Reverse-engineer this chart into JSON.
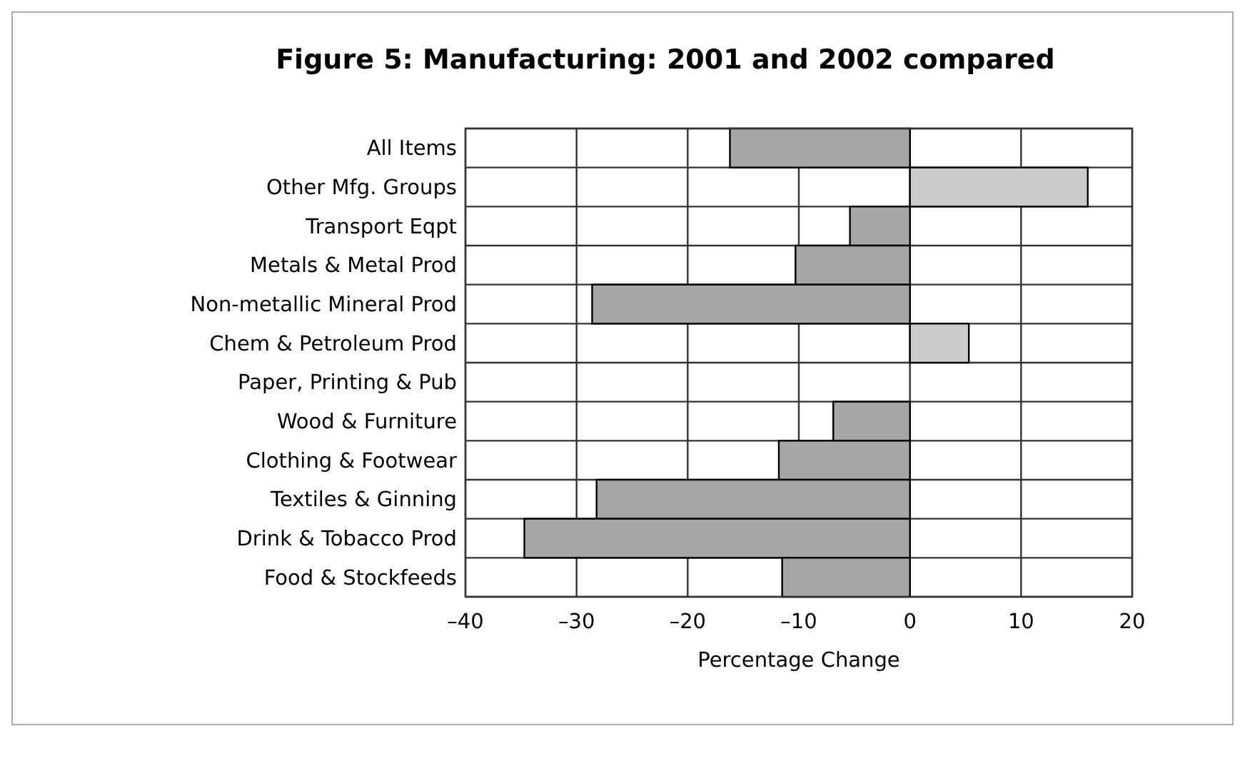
{
  "chart_data": {
    "type": "bar",
    "orientation": "horizontal",
    "title": "Figure 5: Manufacturing: 2001 and 2002 compared",
    "xlabel": "Percentage Change",
    "categories": [
      "All Items",
      "Other Mfg. Groups",
      "Transport Eqpt",
      "Metals & Metal Prod",
      "Non-metallic Mineral Prod",
      "Chem & Petroleum Prod",
      "Paper, Printing & Pub",
      "Wood & Furniture",
      "Clothing & Footwear",
      "Textiles & Ginning",
      "Drink & Tobacco Prod",
      "Food & Stockfeeds"
    ],
    "values": [
      -16.2,
      16.0,
      -5.4,
      -10.3,
      -28.6,
      5.3,
      0,
      -6.9,
      -11.8,
      -28.2,
      -34.7,
      -11.5
    ],
    "colors": [
      "#a6a6a6",
      "#cccccc",
      "#a6a6a6",
      "#a6a6a6",
      "#a6a6a6",
      "#cccccc",
      "#a6a6a6",
      "#a6a6a6",
      "#a6a6a6",
      "#a6a6a6",
      "#a6a6a6",
      "#a6a6a6"
    ],
    "xlim": [
      -40,
      20
    ],
    "xticks": [
      {
        "value": -40,
        "label": "–40"
      },
      {
        "value": -30,
        "label": "–30"
      },
      {
        "value": -20,
        "label": "–20"
      },
      {
        "value": -10,
        "label": "–10"
      },
      0,
      10,
      20
    ],
    "grid": true
  }
}
